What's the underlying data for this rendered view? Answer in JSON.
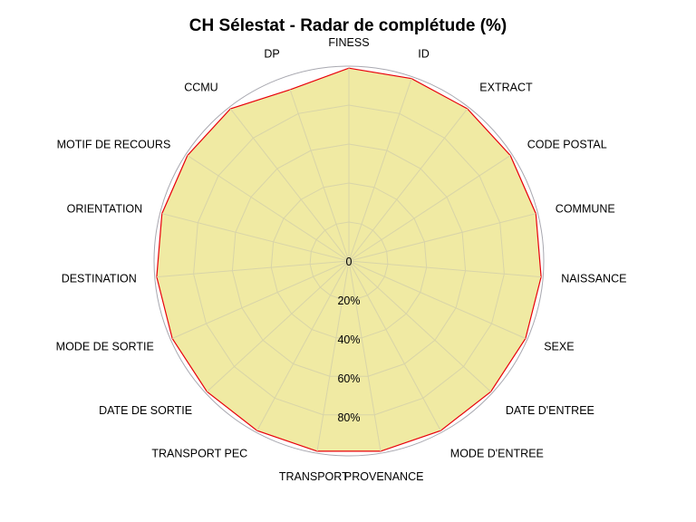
{
  "chart_data": {
    "type": "radar",
    "title": "CH Sélestat - Radar de complétude (%)",
    "axes": [
      "FINESS",
      "ID",
      "EXTRACT",
      "CODE POSTAL",
      "COMMUNE",
      "NAISSANCE",
      "SEXE",
      "DATE D'ENTREE",
      "MODE D'ENTREE",
      "PROVENANCE",
      "TRANSPORT",
      "TRANSPORT PEC",
      "DATE DE SORTIE",
      "MODE DE SORTIE",
      "DESTINATION",
      "ORIENTATION",
      "MOTIF DE RECOURS",
      "CCMU",
      "DP"
    ],
    "values": [
      99,
      99,
      99,
      99,
      99,
      99,
      99,
      99,
      99,
      99,
      99,
      99,
      99,
      99,
      99,
      99,
      99,
      99,
      93
    ],
    "ring_values": [
      0,
      20,
      40,
      60,
      80
    ],
    "ring_labels": [
      "0",
      "20%",
      "40%",
      "60%",
      "80%"
    ],
    "rlim": [
      0,
      100
    ],
    "grid": true,
    "colors": {
      "fill": "#f0eaa3",
      "line": "#e8000b",
      "grid": "#d8d4a8",
      "outer": "#a8a8b0"
    }
  }
}
